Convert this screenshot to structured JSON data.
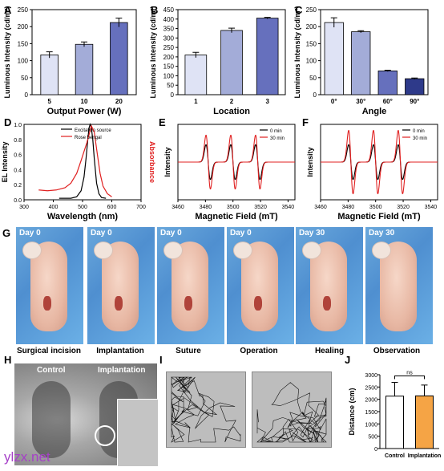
{
  "panels": {
    "A": "A",
    "B": "B",
    "C": "C",
    "D": "D",
    "E": "E",
    "F": "F",
    "G": "G",
    "H": "H",
    "I": "I",
    "J": "J"
  },
  "chart_data": [
    {
      "id": "A",
      "type": "bar",
      "categories": [
        "5",
        "10",
        "20"
      ],
      "values": [
        117,
        148,
        212
      ],
      "errors": [
        9,
        7,
        13
      ],
      "xlabel": "Output Power (W)",
      "ylabel": "Luminous Intensity (cd/m²)",
      "ylim": [
        0,
        250
      ],
      "yticks": [
        0,
        50,
        100,
        150,
        200,
        250
      ],
      "colors": [
        "#dfe3f5",
        "#a3acd8",
        "#6670bd"
      ]
    },
    {
      "id": "B",
      "type": "bar",
      "categories": [
        "1",
        "2",
        "3"
      ],
      "values": [
        210,
        340,
        405
      ],
      "errors": [
        14,
        12,
        4
      ],
      "xlabel": "Location",
      "ylabel": "Luminous Intensity (cd/m²)",
      "ylim": [
        0,
        450
      ],
      "yticks": [
        0,
        50,
        100,
        150,
        200,
        250,
        300,
        350,
        400,
        450
      ],
      "colors": [
        "#dfe3f5",
        "#a3acd8",
        "#6670bd"
      ]
    },
    {
      "id": "C",
      "type": "bar",
      "categories": [
        "0°",
        "30°",
        "60°",
        "90°"
      ],
      "values": [
        212,
        185,
        70,
        47
      ],
      "errors": [
        14,
        3,
        2,
        2
      ],
      "xlabel": "Angle",
      "ylabel": "Luminous Intensity (cd/m²)",
      "ylim": [
        0,
        250
      ],
      "yticks": [
        0,
        50,
        100,
        150,
        200,
        250
      ],
      "colors": [
        "#dfe3f5",
        "#a3acd8",
        "#6670bd",
        "#2e3a8a"
      ]
    },
    {
      "id": "D",
      "type": "line",
      "xlabel": "Wavelength (nm)",
      "ylabel": "EL Intensity",
      "ylabel2": "Absorbance",
      "xlim": [
        300,
        700
      ],
      "xticks": [
        300,
        400,
        500,
        600,
        700
      ],
      "ylim": [
        0,
        1.0
      ],
      "yticks": [
        0.0,
        0.2,
        0.4,
        0.6,
        0.8,
        1.0
      ],
      "series": [
        {
          "name": "Excitation source",
          "color": "#000000",
          "x": [
            420,
            460,
            480,
            495,
            505,
            512,
            518,
            522,
            526,
            530,
            535,
            540,
            548,
            556,
            565,
            580
          ],
          "y": [
            0.02,
            0.02,
            0.04,
            0.12,
            0.3,
            0.55,
            0.8,
            0.95,
            1.0,
            0.96,
            0.8,
            0.55,
            0.22,
            0.08,
            0.03,
            0.02
          ]
        },
        {
          "name": "Rose bengal",
          "color": "#e02020",
          "x": [
            350,
            380,
            410,
            440,
            460,
            480,
            495,
            505,
            515,
            522,
            530,
            540,
            550,
            560,
            570,
            585,
            600
          ],
          "y": [
            0.13,
            0.12,
            0.13,
            0.16,
            0.22,
            0.35,
            0.52,
            0.64,
            0.76,
            0.86,
            0.98,
            0.9,
            0.62,
            0.35,
            0.18,
            0.08,
            0.04
          ]
        }
      ]
    },
    {
      "id": "E",
      "type": "line",
      "xlabel": "Magnetic Field (mT)",
      "ylabel": "Intensity",
      "xlim": [
        3460,
        3545
      ],
      "xticks": [
        3460,
        3480,
        3500,
        3520,
        3540
      ],
      "series": [
        {
          "name": "0   min",
          "color": "#000000",
          "amp": 0.55
        },
        {
          "name": "30 min",
          "color": "#e02020",
          "amp": 0.85
        }
      ],
      "peaks": [
        3482,
        3500,
        3518
      ]
    },
    {
      "id": "F",
      "type": "line",
      "xlabel": "Magnetic Field (mT)",
      "ylabel": "Intensity",
      "xlim": [
        3460,
        3545
      ],
      "xticks": [
        3460,
        3480,
        3500,
        3520,
        3540
      ],
      "series": [
        {
          "name": "0   min",
          "color": "#000000",
          "amp": 0.55
        },
        {
          "name": "30 min",
          "color": "#e02020",
          "amp": 1.0
        }
      ],
      "peaks": [
        3482,
        3500,
        3518
      ]
    },
    {
      "id": "J",
      "type": "bar",
      "categories": [
        "Control",
        "Implantation"
      ],
      "values": [
        2130,
        2140
      ],
      "errors": [
        560,
        440
      ],
      "ylabel": "Distance (cm)",
      "ylim": [
        0,
        3000
      ],
      "yticks": [
        0,
        500,
        1000,
        1500,
        2000,
        2500,
        3000
      ],
      "colors": [
        "#ffffff",
        "#f5a445"
      ],
      "annotation": "ns"
    }
  ],
  "photos": [
    {
      "day": "Day 0",
      "label": "Surgical incision"
    },
    {
      "day": "Day 0",
      "label": "Implantation"
    },
    {
      "day": "Day 0",
      "label": "Suture"
    },
    {
      "day": "Day 0",
      "label": "Operation"
    },
    {
      "day": "Day 30",
      "label": "Healing"
    },
    {
      "day": "Day 30",
      "label": "Observation"
    }
  ],
  "xray": {
    "control": "Control",
    "implantation": "Implantation"
  },
  "watermark": "ylzx.net"
}
